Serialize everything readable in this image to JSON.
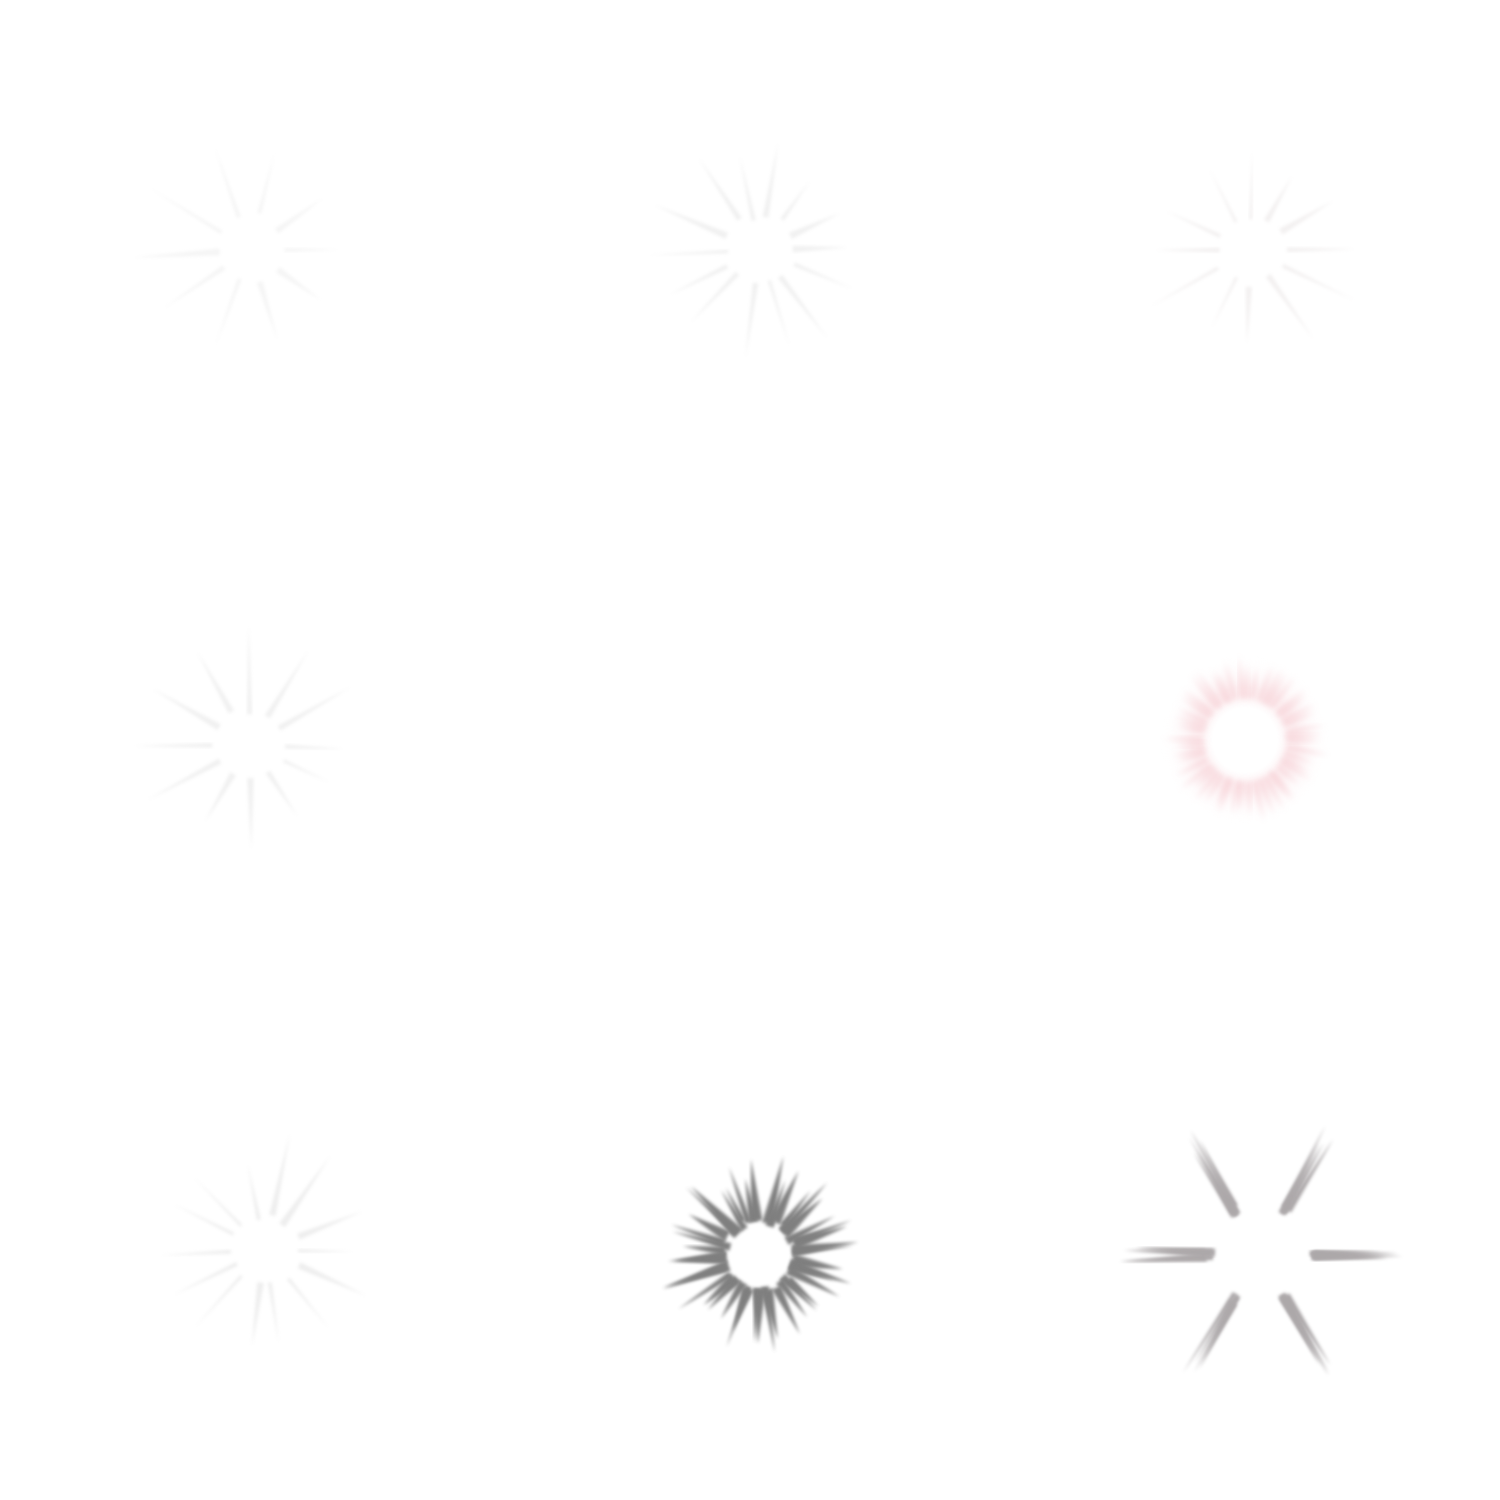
{
  "sheet": {
    "background": "#ffffff",
    "bursts": [
      {
        "name": "burst-faint-top-left",
        "style": "spiky",
        "color": "#d8d8d8",
        "opacity": 0.25,
        "rays": 10,
        "glow": ""
      },
      {
        "name": "burst-faint-top-center",
        "style": "spiky",
        "color": "#d0d0d0",
        "opacity": 0.3,
        "rays": 14,
        "glow": ""
      },
      {
        "name": "burst-faint-top-right",
        "style": "spiky",
        "color": "#d8d0d0",
        "opacity": 0.3,
        "rays": 12,
        "glow": ""
      },
      {
        "name": "burst-faint-middle-left",
        "style": "spiky",
        "color": "#d0d0d0",
        "opacity": 0.3,
        "rays": 12,
        "glow": ""
      },
      {
        "name": "burst-empty-middle-center",
        "style": "none",
        "color": "#ffffff",
        "opacity": 0,
        "rays": 0,
        "glow": ""
      },
      {
        "name": "burst-pink-glow",
        "style": "glow",
        "color": "#f2b8c0",
        "opacity": 0.55,
        "rays": 48,
        "glow": "#f7c6cc"
      },
      {
        "name": "burst-faint-bottom-left",
        "style": "spiky",
        "color": "#c8c8c8",
        "opacity": 0.3,
        "rays": 14,
        "glow": ""
      },
      {
        "name": "burst-gray-dense",
        "style": "dense",
        "color": "#555555",
        "opacity": 0.75,
        "rays": 44,
        "glow": ""
      },
      {
        "name": "burst-gray-six-ray",
        "style": "sixray",
        "color": "#8a8486",
        "opacity": 0.7,
        "rays": 6,
        "glow": ""
      }
    ]
  }
}
